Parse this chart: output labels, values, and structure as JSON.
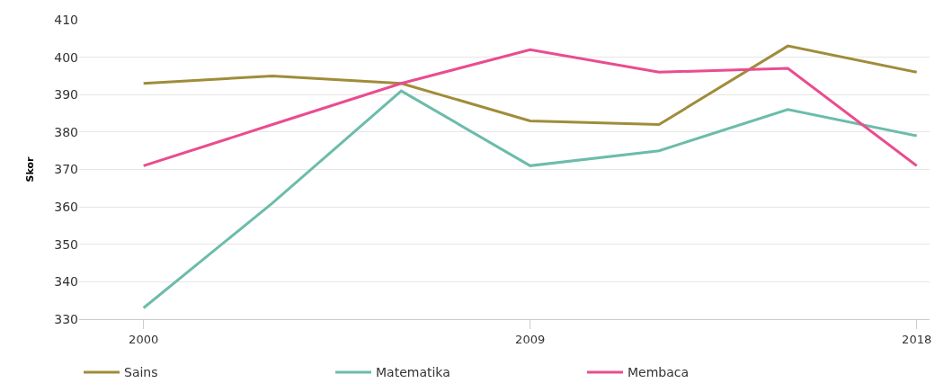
{
  "chart_data": {
    "type": "line",
    "ylabel": "Skor",
    "x": [
      2000,
      2003,
      2006,
      2009,
      2012,
      2015,
      2018
    ],
    "series": [
      {
        "name": "Sains",
        "color": "#a08c3a",
        "values": [
          393,
          395,
          393,
          383,
          382,
          403,
          396
        ]
      },
      {
        "name": "Matematika",
        "color": "#6cbcaa",
        "values": [
          333,
          361,
          391,
          371,
          375,
          386,
          379
        ]
      },
      {
        "name": "Membaca",
        "color": "#ea4c8f",
        "values": [
          371,
          382,
          393,
          402,
          396,
          397,
          371
        ]
      }
    ],
    "xlim": [
      1998.5,
      2018.3
    ],
    "xticks": [
      2000,
      2009,
      2018
    ],
    "ylim": [
      330,
      410
    ],
    "yticks": [
      330,
      340,
      350,
      360,
      370,
      380,
      390,
      400,
      410
    ],
    "grid": "y",
    "legend": "bottom",
    "marker": "none",
    "line_style": "solid"
  }
}
